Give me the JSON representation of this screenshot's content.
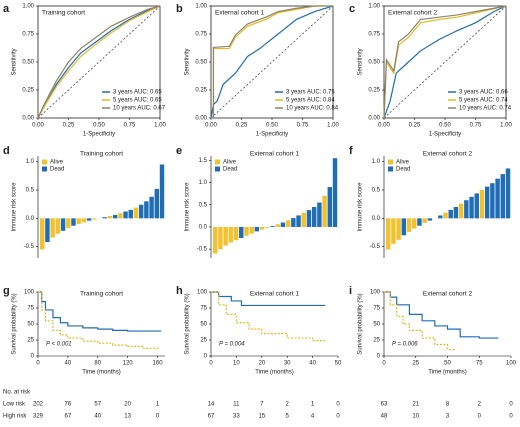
{
  "chart_data": [
    {
      "type": "line",
      "panel": "a",
      "title": "Training cohort",
      "xlabel": "1-Specificity",
      "ylabel": "Sensitivity",
      "xlim": [
        0,
        1
      ],
      "ylim": [
        0,
        1
      ],
      "xticks": [
        {
          "value": 0,
          "label": "0.00"
        },
        {
          "value": 0.25,
          "label": "0.25"
        },
        {
          "value": 0.5,
          "label": "0.50"
        },
        {
          "value": 0.75,
          "label": "0.75"
        },
        {
          "value": 1,
          "label": "1.00"
        }
      ],
      "yticks": [
        {
          "value": 0,
          "label": "0.00"
        },
        {
          "value": 0.25,
          "label": "0.25"
        },
        {
          "value": 0.5,
          "label": "0.50"
        },
        {
          "value": 0.75,
          "label": "0.75"
        },
        {
          "value": 1,
          "label": "1.00"
        }
      ],
      "series": [
        {
          "name": "3 years AUC: 0.65",
          "color": "#1f6db5",
          "x": [
            0,
            0.05,
            0.15,
            0.25,
            0.35,
            0.5,
            0.6,
            0.75,
            0.9,
            1
          ],
          "values": [
            0,
            0.1,
            0.3,
            0.45,
            0.58,
            0.7,
            0.78,
            0.88,
            0.96,
            1
          ]
        },
        {
          "name": "5 years AUC: 0.65",
          "color": "#e6b921",
          "x": [
            0,
            0.05,
            0.15,
            0.25,
            0.35,
            0.5,
            0.6,
            0.75,
            0.9,
            1
          ],
          "values": [
            0,
            0.1,
            0.28,
            0.42,
            0.55,
            0.68,
            0.76,
            0.87,
            0.95,
            1
          ]
        },
        {
          "name": "10 years AUC: 0.67",
          "color": "#8c8468",
          "x": [
            0,
            0.05,
            0.15,
            0.25,
            0.35,
            0.5,
            0.6,
            0.75,
            0.9,
            1
          ],
          "values": [
            0,
            0.12,
            0.33,
            0.5,
            0.62,
            0.74,
            0.82,
            0.9,
            0.97,
            1
          ]
        }
      ]
    },
    {
      "type": "line",
      "panel": "b",
      "title": "External cohort 1",
      "xlabel": "1-Specificity",
      "ylabel": "Sensitivity",
      "xlim": [
        0,
        1
      ],
      "ylim": [
        0,
        1
      ],
      "xticks": [
        {
          "value": 0,
          "label": "0.00"
        },
        {
          "value": 0.25,
          "label": "0.25"
        },
        {
          "value": 0.5,
          "label": "0.50"
        },
        {
          "value": 0.75,
          "label": "0.75"
        },
        {
          "value": 1,
          "label": "1.00"
        }
      ],
      "yticks": [
        {
          "value": 0,
          "label": "0.00"
        },
        {
          "value": 0.25,
          "label": "0.25"
        },
        {
          "value": 0.5,
          "label": "0.50"
        },
        {
          "value": 0.75,
          "label": "0.75"
        },
        {
          "value": 1,
          "label": "1.00"
        }
      ],
      "series": [
        {
          "name": "3 years AUC: 0.75",
          "color": "#1f6db5",
          "x": [
            0,
            0.02,
            0.05,
            0.1,
            0.2,
            0.3,
            0.4,
            0.55,
            0.7,
            0.85,
            1
          ],
          "values": [
            0,
            0.12,
            0.15,
            0.3,
            0.4,
            0.55,
            0.62,
            0.75,
            0.88,
            0.95,
            1
          ]
        },
        {
          "name": "5 years AUC: 0.84",
          "color": "#e6b921",
          "x": [
            0,
            0.02,
            0.02,
            0.15,
            0.2,
            0.3,
            0.45,
            0.55,
            0.7,
            0.85,
            1
          ],
          "values": [
            0,
            0,
            0.62,
            0.62,
            0.72,
            0.82,
            0.88,
            0.94,
            0.97,
            1,
            1
          ]
        },
        {
          "name": "10 years AUC: 0.84",
          "color": "#8c8468",
          "x": [
            0,
            0.02,
            0.02,
            0.15,
            0.2,
            0.3,
            0.45,
            0.55,
            0.7,
            0.85,
            1
          ],
          "values": [
            0,
            0,
            0.63,
            0.64,
            0.74,
            0.84,
            0.9,
            0.95,
            0.98,
            1,
            1
          ]
        }
      ]
    },
    {
      "type": "line",
      "panel": "c",
      "title": "External cohort 2",
      "xlabel": "1-Specificity",
      "ylabel": "Sensitivity",
      "xlim": [
        0,
        1
      ],
      "ylim": [
        0,
        1
      ],
      "xticks": [
        {
          "value": 0,
          "label": "0.00"
        },
        {
          "value": 0.25,
          "label": "0.25"
        },
        {
          "value": 0.5,
          "label": "0.50"
        },
        {
          "value": 0.75,
          "label": "0.75"
        },
        {
          "value": 1,
          "label": "1.00"
        }
      ],
      "yticks": [
        {
          "value": 0,
          "label": "0.00"
        },
        {
          "value": 0.25,
          "label": "0.25"
        },
        {
          "value": 0.5,
          "label": "0.50"
        },
        {
          "value": 0.75,
          "label": "0.75"
        },
        {
          "value": 1,
          "label": "1.00"
        }
      ],
      "series": [
        {
          "name": "3 years AUC: 0.66",
          "color": "#1f6db5",
          "x": [
            0,
            0.05,
            0.1,
            0.2,
            0.3,
            0.45,
            0.6,
            0.75,
            0.9,
            1
          ],
          "values": [
            0,
            0.15,
            0.4,
            0.5,
            0.6,
            0.7,
            0.78,
            0.85,
            0.95,
            1
          ]
        },
        {
          "name": "5 years AUC: 0.74",
          "color": "#e6b921",
          "x": [
            0,
            0.02,
            0.08,
            0.12,
            0.2,
            0.3,
            0.45,
            0.6,
            0.8,
            1
          ],
          "values": [
            0,
            0.5,
            0.4,
            0.65,
            0.72,
            0.85,
            0.88,
            0.9,
            0.95,
            1
          ]
        },
        {
          "name": "10 years AUC: 0.74",
          "color": "#8c8468",
          "x": [
            0,
            0.02,
            0.08,
            0.12,
            0.2,
            0.3,
            0.45,
            0.6,
            0.8,
            1
          ],
          "values": [
            0,
            0.52,
            0.42,
            0.68,
            0.75,
            0.88,
            0.9,
            0.92,
            0.96,
            1
          ]
        }
      ]
    },
    {
      "type": "bar",
      "panel": "d",
      "title": "Training cohort",
      "ylabel": "Immune risk score",
      "ylim": [
        -0.7,
        1.1
      ],
      "yticks": [
        -0.5,
        {
          "value": 0,
          "label": "0.0"
        },
        0.5,
        {
          "value": 1,
          "label": "1.0"
        }
      ],
      "series": [
        {
          "name": "Alive",
          "color": "#f2c12e",
          "values": [
            -0.55,
            null,
            -0.34,
            -0.27,
            null,
            -0.17,
            null,
            -0.1,
            -0.07,
            null,
            -0.02,
            null,
            null,
            0.04,
            null,
            0.09,
            null,
            null,
            0.19,
            null,
            null,
            null,
            null,
            null
          ]
        },
        {
          "name": "Dead",
          "color": "#1f6db5",
          "values": [
            null,
            -0.42,
            null,
            null,
            -0.22,
            null,
            -0.13,
            null,
            null,
            -0.04,
            null,
            0,
            0.02,
            null,
            0.06,
            null,
            0.12,
            0.15,
            null,
            0.24,
            0.3,
            0.38,
            0.52,
            0.95
          ]
        }
      ]
    },
    {
      "type": "bar",
      "panel": "e",
      "title": "External cohort 1",
      "ylabel": "Immune risk score",
      "ylim": [
        -0.7,
        1.6
      ],
      "yticks": [
        -0.5,
        {
          "value": 0,
          "label": "0.0"
        },
        0.5,
        {
          "value": 1,
          "label": "1.0"
        },
        1.5
      ],
      "series": [
        {
          "name": "Alive",
          "color": "#f2c12e",
          "values": [
            -0.6,
            -0.5,
            -0.42,
            -0.35,
            -0.3,
            null,
            -0.2,
            -0.15,
            null,
            -0.06,
            -0.02,
            null,
            0.06,
            null,
            0.15,
            null,
            null,
            0.32,
            null,
            null,
            null,
            0.7,
            null,
            null
          ]
        },
        {
          "name": "Dead",
          "color": "#1f6db5",
          "values": [
            null,
            null,
            null,
            null,
            null,
            -0.25,
            null,
            null,
            -0.1,
            null,
            null,
            0.02,
            null,
            0.1,
            null,
            0.2,
            0.26,
            null,
            0.38,
            0.45,
            0.55,
            null,
            0.9,
            1.55
          ]
        }
      ]
    },
    {
      "type": "bar",
      "panel": "f",
      "title": "External cohort 2",
      "ylabel": "Immune risk score",
      "ylim": [
        -0.7,
        1.1
      ],
      "yticks": [
        -0.5,
        {
          "value": 0,
          "label": "0.0"
        },
        0.5,
        {
          "value": 1,
          "label": "1.0"
        }
      ],
      "series": [
        {
          "name": "Alive",
          "color": "#f2c12e",
          "values": [
            -0.55,
            -0.45,
            -0.38,
            null,
            -0.24,
            -0.18,
            null,
            -0.08,
            null,
            0,
            null,
            0.1,
            null,
            null,
            0.26,
            null,
            null,
            null,
            0.5,
            null,
            null,
            null,
            null,
            null
          ]
        },
        {
          "name": "Dead",
          "color": "#1f6db5",
          "values": [
            null,
            null,
            null,
            -0.3,
            null,
            null,
            -0.13,
            null,
            -0.04,
            null,
            0.05,
            null,
            0.15,
            0.2,
            null,
            0.32,
            0.38,
            0.44,
            null,
            0.56,
            0.62,
            0.7,
            0.78,
            0.88
          ]
        }
      ]
    },
    {
      "type": "step",
      "panel": "g",
      "title": "Training cohort",
      "xlabel": "Time (months)",
      "ylabel": "Survival probability (%)",
      "annotation": "P < 0.001",
      "xlim": [
        0,
        170
      ],
      "ylim": [
        0,
        100
      ],
      "xticks": [
        0,
        40,
        80,
        120,
        160
      ],
      "yticks": [
        0,
        25,
        50,
        75,
        100
      ],
      "series": [
        {
          "name": "Low risk",
          "color": "#1f6db5",
          "x": [
            0,
            5,
            10,
            20,
            30,
            40,
            60,
            80,
            100,
            120,
            165
          ],
          "values": [
            100,
            85,
            72,
            60,
            52,
            47,
            44,
            42,
            40,
            39,
            39
          ]
        },
        {
          "name": "High risk",
          "color": "#e6b921",
          "dashed": true,
          "x": [
            0,
            5,
            10,
            20,
            30,
            40,
            60,
            80,
            100,
            120,
            140,
            160
          ],
          "values": [
            100,
            72,
            55,
            40,
            33,
            28,
            23,
            20,
            17,
            15,
            12,
            8
          ]
        }
      ],
      "risk_table": {
        "header": "No. at risk",
        "rows": [
          {
            "label": "Low risk",
            "counts": [
              202,
              76,
              57,
              20,
              1
            ]
          },
          {
            "label": "High risk",
            "counts": [
              329,
              67,
              40,
              13,
              0
            ]
          }
        ]
      }
    },
    {
      "type": "step",
      "panel": "h",
      "title": "External cohort 1",
      "xlabel": "Time (months)",
      "ylabel": "Survival probability (%)",
      "annotation": "P = 0.004",
      "xlim": [
        0,
        50
      ],
      "ylim": [
        0,
        100
      ],
      "xticks": [
        0,
        10,
        20,
        30,
        40,
        50
      ],
      "yticks": [
        0,
        25,
        50,
        75,
        100
      ],
      "series": [
        {
          "name": "Low risk",
          "color": "#1f6db5",
          "x": [
            0,
            3,
            8,
            12,
            20,
            30,
            45
          ],
          "values": [
            100,
            93,
            86,
            79,
            79,
            79,
            79
          ]
        },
        {
          "name": "High risk",
          "color": "#e6b921",
          "dashed": true,
          "x": [
            0,
            3,
            6,
            10,
            15,
            20,
            30,
            40,
            45
          ],
          "values": [
            100,
            80,
            65,
            52,
            42,
            35,
            28,
            24,
            24
          ]
        }
      ],
      "risk_table": {
        "rows": [
          {
            "counts": [
              14,
              11,
              7,
              2,
              1,
              0
            ]
          },
          {
            "counts": [
              67,
              33,
              15,
              5,
              4,
              0
            ]
          }
        ]
      }
    },
    {
      "type": "step",
      "panel": "i",
      "title": "External cohort 2",
      "xlabel": "Time (months)",
      "ylabel": "Survival probability (%)",
      "annotation": "P = 0.006",
      "xlim": [
        0,
        100
      ],
      "ylim": [
        0,
        100
      ],
      "xticks": [
        0,
        25,
        50,
        75,
        100
      ],
      "yticks": [
        0,
        25,
        50,
        75,
        100
      ],
      "series": [
        {
          "name": "Low risk",
          "color": "#1f6db5",
          "x": [
            0,
            5,
            10,
            20,
            30,
            40,
            50,
            60,
            75,
            90
          ],
          "values": [
            100,
            92,
            80,
            65,
            55,
            47,
            42,
            30,
            28,
            28
          ]
        },
        {
          "name": "High risk",
          "color": "#e6b921",
          "dashed": true,
          "x": [
            0,
            5,
            10,
            15,
            20,
            30,
            40,
            50,
            55
          ],
          "values": [
            100,
            80,
            62,
            50,
            40,
            28,
            18,
            10,
            8
          ]
        }
      ],
      "risk_table": {
        "rows": [
          {
            "counts": [
              63,
              21,
              8,
              2,
              0
            ]
          },
          {
            "counts": [
              48,
              10,
              3,
              0,
              0
            ]
          }
        ]
      }
    }
  ]
}
